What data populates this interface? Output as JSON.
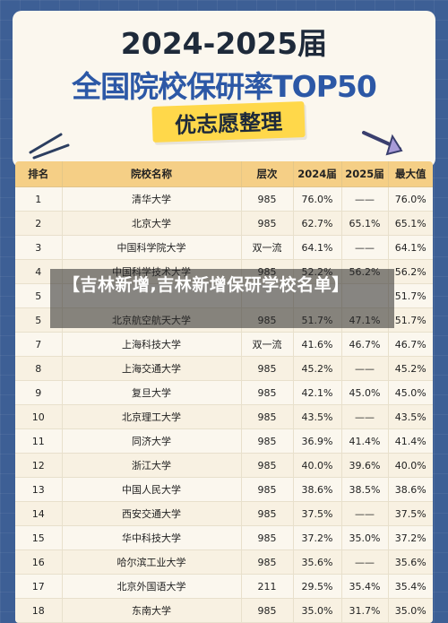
{
  "header": {
    "title_year": "2024-2025届",
    "title_main": "全国院校保研率TOP50",
    "badge": "优志愿整理"
  },
  "colors": {
    "background": "#3d5f95",
    "header_row": "#f5cf86",
    "badge": "#ffd84a",
    "title_blue": "#2c58a6"
  },
  "table": {
    "columns": [
      "排名",
      "院校名称",
      "层次",
      "2024届",
      "2025届",
      "最大值"
    ],
    "rows": [
      [
        "1",
        "清华大学",
        "985",
        "76.0%",
        "——",
        "76.0%"
      ],
      [
        "2",
        "北京大学",
        "985",
        "62.7%",
        "65.1%",
        "65.1%"
      ],
      [
        "3",
        "中国科学院大学",
        "双一流",
        "64.1%",
        "——",
        "64.1%"
      ],
      [
        "4",
        "中国科学技术大学",
        "985",
        "52.2%",
        "56.2%",
        "56.2%"
      ],
      [
        "5",
        "",
        "",
        "",
        "",
        "51.7%"
      ],
      [
        "5",
        "北京航空航天大学",
        "985",
        "51.7%",
        "47.1%",
        "51.7%"
      ],
      [
        "7",
        "上海科技大学",
        "双一流",
        "41.6%",
        "46.7%",
        "46.7%"
      ],
      [
        "8",
        "上海交通大学",
        "985",
        "45.2%",
        "——",
        "45.2%"
      ],
      [
        "9",
        "复旦大学",
        "985",
        "42.1%",
        "45.0%",
        "45.0%"
      ],
      [
        "10",
        "北京理工大学",
        "985",
        "43.5%",
        "——",
        "43.5%"
      ],
      [
        "11",
        "同济大学",
        "985",
        "36.9%",
        "41.4%",
        "41.4%"
      ],
      [
        "12",
        "浙江大学",
        "985",
        "40.0%",
        "39.6%",
        "40.0%"
      ],
      [
        "13",
        "中国人民大学",
        "985",
        "38.6%",
        "38.5%",
        "38.6%"
      ],
      [
        "14",
        "西安交通大学",
        "985",
        "37.5%",
        "——",
        "37.5%"
      ],
      [
        "15",
        "华中科技大学",
        "985",
        "37.2%",
        "35.0%",
        "37.2%"
      ],
      [
        "16",
        "哈尔滨工业大学",
        "985",
        "35.6%",
        "——",
        "35.6%"
      ],
      [
        "17",
        "北京外国语大学",
        "211",
        "29.5%",
        "35.4%",
        "35.4%"
      ],
      [
        "18",
        "东南大学",
        "985",
        "35.0%",
        "31.7%",
        "35.0%"
      ]
    ]
  },
  "overlay": {
    "text": "【吉林新增,吉林新增保研学校名单】"
  }
}
